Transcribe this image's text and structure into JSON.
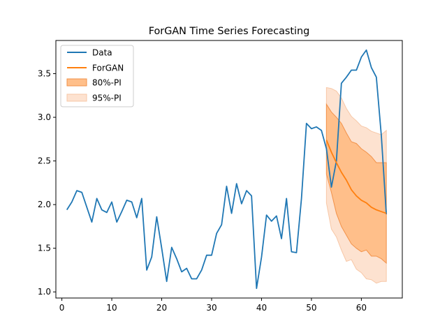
{
  "chart_data": {
    "type": "line",
    "title": "ForGAN Time Series Forecasting",
    "xlabel": "",
    "ylabel": "",
    "xlim": [
      -1.2,
      68.2
    ],
    "ylim": [
      0.93,
      3.88
    ],
    "xticks": [
      0,
      10,
      20,
      30,
      40,
      50,
      60
    ],
    "yticks": [
      1.0,
      1.5,
      2.0,
      2.5,
      3.0,
      3.5
    ],
    "xtick_labels": [
      "0",
      "10",
      "20",
      "30",
      "40",
      "50",
      "60"
    ],
    "ytick_labels": [
      "1.0",
      "1.5",
      "2.0",
      "2.5",
      "3.0",
      "3.5"
    ],
    "grid": false,
    "legend_position": "top-left",
    "legend": {
      "data": "Data",
      "forgan": "ForGAN",
      "pi80": "80%-PI",
      "pi95": "95%-PI"
    },
    "colors": {
      "data": "#1f77b4",
      "forgan": "#ff7f0e",
      "pi80_fill": "#ffbf8a",
      "pi80_edge": "#f2924a",
      "pi95_fill": "#fde2d0",
      "pi95_edge": "#f7c7a6"
    },
    "series": [
      {
        "name": "Data",
        "x": [
          1,
          2,
          3,
          4,
          5,
          6,
          7,
          8,
          9,
          10,
          11,
          12,
          13,
          14,
          15,
          16,
          17,
          18,
          19,
          20,
          21,
          22,
          23,
          24,
          25,
          26,
          27,
          28,
          29,
          30,
          31,
          32,
          33,
          34,
          35,
          36,
          37,
          38,
          39,
          40,
          41,
          42,
          43,
          44,
          45,
          46,
          47,
          48,
          49,
          50,
          51,
          52,
          53,
          54,
          55,
          56,
          57,
          58,
          59,
          60,
          61,
          62,
          63,
          64,
          65
        ],
        "y": [
          1.94,
          2.03,
          2.16,
          2.14,
          1.97,
          1.8,
          2.07,
          1.94,
          1.91,
          2.03,
          1.8,
          1.92,
          2.05,
          2.03,
          1.85,
          2.07,
          1.25,
          1.4,
          1.86,
          1.5,
          1.12,
          1.51,
          1.38,
          1.23,
          1.27,
          1.15,
          1.15,
          1.25,
          1.42,
          1.42,
          1.67,
          1.77,
          2.21,
          1.9,
          2.24,
          2.01,
          2.16,
          2.1,
          1.04,
          1.4,
          1.88,
          1.81,
          1.87,
          1.61,
          2.07,
          1.46,
          1.45,
          2.07,
          2.93,
          2.87,
          2.89,
          2.85,
          2.64,
          2.2,
          2.5,
          3.39,
          3.46,
          3.54,
          3.54,
          3.69,
          3.77,
          3.57,
          3.46,
          2.79,
          1.89
        ]
      },
      {
        "name": "ForGAN",
        "x": [
          53,
          54,
          55,
          56,
          57,
          58,
          59,
          60,
          61,
          62,
          63,
          64,
          65
        ],
        "y": [
          2.74,
          2.6,
          2.48,
          2.37,
          2.28,
          2.17,
          2.1,
          2.05,
          2.02,
          1.97,
          1.94,
          1.92,
          1.9
        ]
      }
    ],
    "bands": [
      {
        "name": "95%-PI",
        "x": [
          53,
          54,
          55,
          56,
          57,
          58,
          59,
          60,
          61,
          62,
          63,
          64,
          65
        ],
        "upper": [
          3.34,
          3.33,
          3.3,
          3.22,
          3.1,
          3.01,
          2.96,
          2.9,
          2.88,
          2.84,
          2.82,
          2.8,
          2.85
        ],
        "lower": [
          2.02,
          1.72,
          1.63,
          1.48,
          1.35,
          1.37,
          1.26,
          1.22,
          1.15,
          1.14,
          1.1,
          1.12,
          1.12
        ]
      },
      {
        "name": "80%-PI",
        "x": [
          53,
          54,
          55,
          56,
          57,
          58,
          59,
          60,
          61,
          62,
          63,
          64,
          65
        ],
        "upper": [
          3.15,
          3.06,
          3.0,
          2.93,
          2.82,
          2.72,
          2.7,
          2.64,
          2.6,
          2.55,
          2.48,
          2.48,
          2.48
        ],
        "lower": [
          2.35,
          2.14,
          1.9,
          1.75,
          1.65,
          1.55,
          1.5,
          1.46,
          1.48,
          1.41,
          1.41,
          1.38,
          1.33
        ]
      }
    ]
  }
}
